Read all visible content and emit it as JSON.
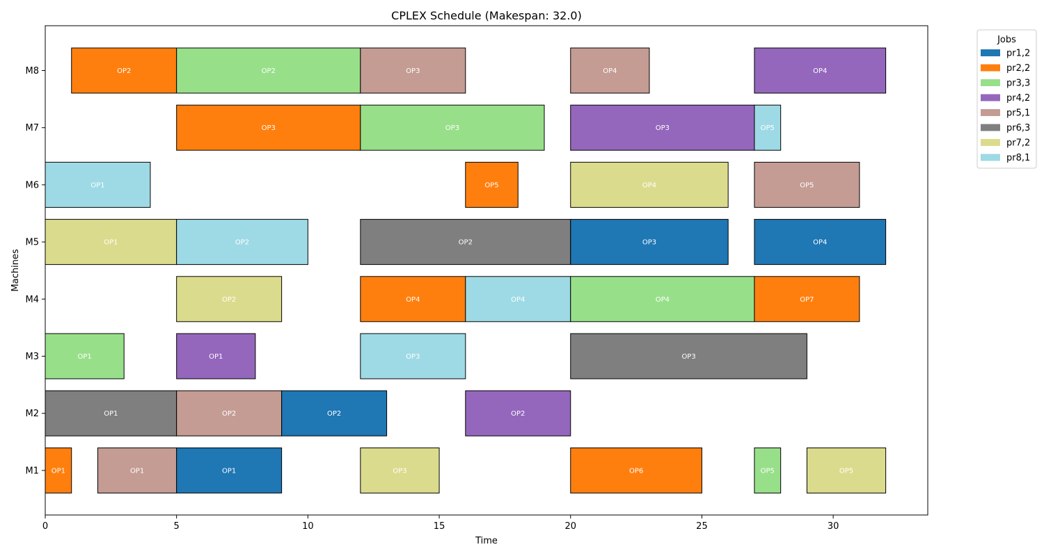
{
  "chart_data": {
    "type": "gantt",
    "title": "CPLEX Schedule (Makespan: 32.0)",
    "xlabel": "Time",
    "ylabel": "Machines",
    "xlim": [
      0,
      33.6
    ],
    "xticks": [
      0,
      5,
      10,
      15,
      20,
      25,
      30
    ],
    "machines": [
      "M1",
      "M2",
      "M3",
      "M4",
      "M5",
      "M6",
      "M7",
      "M8"
    ],
    "legend": {
      "title": "Jobs",
      "placement": "outside-top-right",
      "entries": [
        {
          "name": "pr1,2",
          "color": "#1f77b4"
        },
        {
          "name": "pr2,2",
          "color": "#ff7f0e"
        },
        {
          "name": "pr3,3",
          "color": "#98df8a"
        },
        {
          "name": "pr4,2",
          "color": "#9467bd"
        },
        {
          "name": "pr5,1",
          "color": "#c49c94"
        },
        {
          "name": "pr6,3",
          "color": "#7f7f7f"
        },
        {
          "name": "pr7,2",
          "color": "#dbdb8d"
        },
        {
          "name": "pr8,1",
          "color": "#9edae5"
        }
      ]
    },
    "tasks": [
      {
        "machine": "M8",
        "start": 1,
        "end": 5,
        "job": "pr2,2",
        "label": "OP2"
      },
      {
        "machine": "M8",
        "start": 5,
        "end": 12,
        "job": "pr3,3",
        "label": "OP2"
      },
      {
        "machine": "M8",
        "start": 12,
        "end": 16,
        "job": "pr5,1",
        "label": "OP3"
      },
      {
        "machine": "M8",
        "start": 20,
        "end": 23,
        "job": "pr5,1",
        "label": "OP4"
      },
      {
        "machine": "M8",
        "start": 27,
        "end": 32,
        "job": "pr4,2",
        "label": "OP4"
      },
      {
        "machine": "M7",
        "start": 5,
        "end": 12,
        "job": "pr2,2",
        "label": "OP3"
      },
      {
        "machine": "M7",
        "start": 12,
        "end": 19,
        "job": "pr3,3",
        "label": "OP3"
      },
      {
        "machine": "M7",
        "start": 20,
        "end": 27,
        "job": "pr4,2",
        "label": "OP3"
      },
      {
        "machine": "M7",
        "start": 27,
        "end": 28,
        "job": "pr8,1",
        "label": "OP5"
      },
      {
        "machine": "M6",
        "start": 0,
        "end": 4,
        "job": "pr8,1",
        "label": "OP1"
      },
      {
        "machine": "M6",
        "start": 16,
        "end": 18,
        "job": "pr2,2",
        "label": "OP5"
      },
      {
        "machine": "M6",
        "start": 20,
        "end": 26,
        "job": "pr7,2",
        "label": "OP4"
      },
      {
        "machine": "M6",
        "start": 27,
        "end": 31,
        "job": "pr5,1",
        "label": "OP5"
      },
      {
        "machine": "M5",
        "start": 0,
        "end": 5,
        "job": "pr7,2",
        "label": "OP1"
      },
      {
        "machine": "M5",
        "start": 5,
        "end": 10,
        "job": "pr8,1",
        "label": "OP2"
      },
      {
        "machine": "M5",
        "start": 12,
        "end": 20,
        "job": "pr6,3",
        "label": "OP2"
      },
      {
        "machine": "M5",
        "start": 20,
        "end": 26,
        "job": "pr1,2",
        "label": "OP3"
      },
      {
        "machine": "M5",
        "start": 27,
        "end": 32,
        "job": "pr1,2",
        "label": "OP4"
      },
      {
        "machine": "M4",
        "start": 5,
        "end": 9,
        "job": "pr7,2",
        "label": "OP2"
      },
      {
        "machine": "M4",
        "start": 12,
        "end": 16,
        "job": "pr2,2",
        "label": "OP4"
      },
      {
        "machine": "M4",
        "start": 16,
        "end": 20,
        "job": "pr8,1",
        "label": "OP4"
      },
      {
        "machine": "M4",
        "start": 20,
        "end": 27,
        "job": "pr3,3",
        "label": "OP4"
      },
      {
        "machine": "M4",
        "start": 27,
        "end": 31,
        "job": "pr2,2",
        "label": "OP7"
      },
      {
        "machine": "M3",
        "start": 0,
        "end": 3,
        "job": "pr3,3",
        "label": "OP1"
      },
      {
        "machine": "M3",
        "start": 5,
        "end": 8,
        "job": "pr4,2",
        "label": "OP1"
      },
      {
        "machine": "M3",
        "start": 12,
        "end": 16,
        "job": "pr8,1",
        "label": "OP3"
      },
      {
        "machine": "M3",
        "start": 20,
        "end": 29,
        "job": "pr6,3",
        "label": "OP3"
      },
      {
        "machine": "M2",
        "start": 0,
        "end": 5,
        "job": "pr6,3",
        "label": "OP1"
      },
      {
        "machine": "M2",
        "start": 5,
        "end": 9,
        "job": "pr5,1",
        "label": "OP2"
      },
      {
        "machine": "M2",
        "start": 9,
        "end": 13,
        "job": "pr1,2",
        "label": "OP2"
      },
      {
        "machine": "M2",
        "start": 16,
        "end": 20,
        "job": "pr4,2",
        "label": "OP2"
      },
      {
        "machine": "M1",
        "start": 0,
        "end": 1,
        "job": "pr2,2",
        "label": "OP1"
      },
      {
        "machine": "M1",
        "start": 2,
        "end": 5,
        "job": "pr5,1",
        "label": "OP1"
      },
      {
        "machine": "M1",
        "start": 5,
        "end": 9,
        "job": "pr1,2",
        "label": "OP1"
      },
      {
        "machine": "M1",
        "start": 12,
        "end": 15,
        "job": "pr7,2",
        "label": "OP3"
      },
      {
        "machine": "M1",
        "start": 20,
        "end": 25,
        "job": "pr2,2",
        "label": "OP6"
      },
      {
        "machine": "M1",
        "start": 27,
        "end": 28,
        "job": "pr3,3",
        "label": "OP5"
      },
      {
        "machine": "M1",
        "start": 29,
        "end": 32,
        "job": "pr7,2",
        "label": "OP5"
      }
    ]
  }
}
